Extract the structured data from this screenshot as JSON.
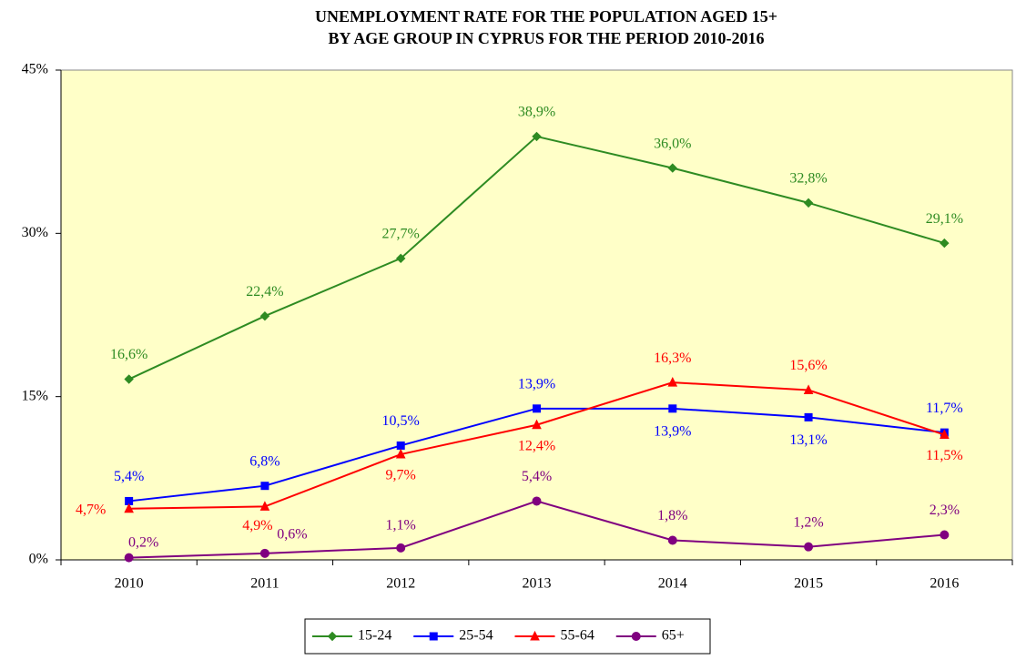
{
  "chart_data": {
    "type": "line",
    "title": [
      "UNEMPLOYMENT RATE FOR THE POPULATION AGED 15+",
      "BY AGE GROUP IN CYPRUS FOR THE PERIOD 2010-2016"
    ],
    "categories": [
      "2010",
      "2011",
      "2012",
      "2013",
      "2014",
      "2015",
      "2016"
    ],
    "series": [
      {
        "name": "15-24",
        "color": "#2e8b22",
        "marker": "diamond",
        "values": [
          16.6,
          22.4,
          27.7,
          38.9,
          36.0,
          32.8,
          29.1
        ],
        "value_labels": [
          "16,6%",
          "22,4%",
          "27,7%",
          "38,9%",
          "36,0%",
          "32,8%",
          "29,1%"
        ]
      },
      {
        "name": "25-54",
        "color": "#0000ff",
        "marker": "square",
        "values": [
          5.4,
          6.8,
          10.5,
          13.9,
          13.9,
          13.1,
          11.7
        ],
        "value_labels": [
          "5,4%",
          "6,8%",
          "10,5%",
          "13,9%",
          "13,9%",
          "13,1%",
          "11,7%"
        ]
      },
      {
        "name": "55-64",
        "color": "#ff0000",
        "marker": "triangle",
        "values": [
          4.7,
          4.9,
          9.7,
          12.4,
          16.3,
          15.6,
          11.5
        ],
        "value_labels": [
          "4,7%",
          "4,9%",
          "9,7%",
          "12,4%",
          "16,3%",
          "15,6%",
          "11,5%"
        ]
      },
      {
        "name": "65+",
        "color": "#800080",
        "marker": "circle",
        "values": [
          0.2,
          0.6,
          1.1,
          5.4,
          1.8,
          1.2,
          2.3
        ],
        "value_labels": [
          "0,2%",
          "0,6%",
          "1,1%",
          "5,4%",
          "1,8%",
          "1,2%",
          "2,3%"
        ]
      }
    ],
    "ylim": [
      0,
      45
    ],
    "yticks": [
      {
        "value": 0,
        "label": "0%"
      },
      {
        "value": 15,
        "label": "15%"
      },
      {
        "value": 30,
        "label": "30%"
      },
      {
        "value": 45,
        "label": "45%"
      }
    ],
    "plot_background": "#ffffc8",
    "legend": "bottom"
  }
}
